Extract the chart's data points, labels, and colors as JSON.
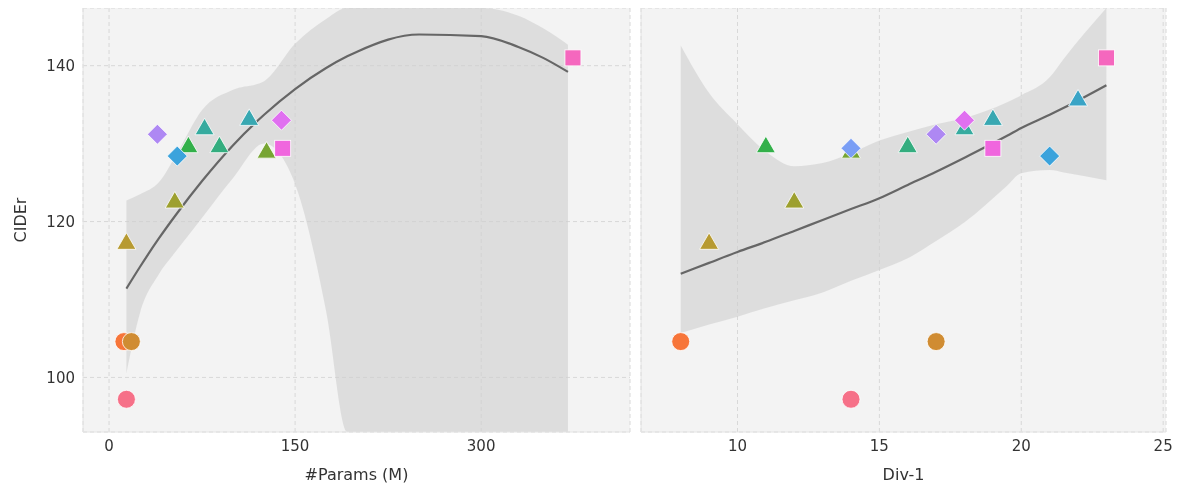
{
  "chart_data": [
    {
      "type": "scatter",
      "xlabel": "#Params (M)",
      "ylabel": "CIDEr",
      "xlim": [
        -21,
        420
      ],
      "xticks": [
        0,
        150,
        300
      ],
      "ylim": [
        93,
        147.4
      ],
      "yticks": [
        100,
        120,
        140
      ],
      "grid": true,
      "series": [
        {
          "type": "line",
          "color": "#666666",
          "x": [
            14,
            25,
            40,
            55,
            75,
            100,
            125,
            150,
            175,
            192,
            200,
            250,
            300,
            330,
            350,
            370
          ],
          "values": [
            111.4,
            114.2,
            117.8,
            121.1,
            125.2,
            129.8,
            133.7,
            137.0,
            139.7,
            141.2,
            141.8,
            144.0,
            143.8,
            142.4,
            141.0,
            139.2
          ],
          "lower": [
            100.5,
            108.3,
            113.2,
            116.4,
            120.5,
            125.6,
            130.0,
            124.8,
            108.5,
            93,
            93,
            93,
            93,
            93,
            93,
            93
          ],
          "upper": [
            122.7,
            123.5,
            125.0,
            128.8,
            134.3,
            136.9,
            138.0,
            142.8,
            146.0,
            147.4,
            147.4,
            147.4,
            147.4,
            146.4,
            144.8,
            142.7
          ]
        },
        {
          "color": "#f67088",
          "marker": "circle",
          "x": [
            14
          ],
          "values": [
            97.2
          ]
        },
        {
          "color": "#f77539",
          "marker": "circle",
          "x": [
            12
          ],
          "values": [
            104.6
          ]
        },
        {
          "color": "#d08c32",
          "marker": "circle",
          "x": [
            18
          ],
          "values": [
            104.6
          ]
        },
        {
          "color": "#b79a31",
          "marker": "triangle",
          "x": [
            14
          ],
          "values": [
            117.4
          ]
        },
        {
          "color": "#9da02f",
          "marker": "triangle",
          "x": [
            53
          ],
          "values": [
            122.7
          ]
        },
        {
          "color": "#77a532",
          "marker": "triangle",
          "x": [
            127
          ],
          "values": [
            129.1
          ]
        },
        {
          "color": "#33b04a",
          "marker": "triangle",
          "x": [
            64
          ],
          "values": [
            129.8
          ]
        },
        {
          "color": "#34ad7f",
          "marker": "triangle",
          "x": [
            89
          ],
          "values": [
            129.8
          ]
        },
        {
          "color": "#36ab9f",
          "marker": "triangle",
          "x": [
            77
          ],
          "values": [
            132.1
          ]
        },
        {
          "color": "#38a8b2",
          "marker": "triangle",
          "x": [
            113
          ],
          "values": [
            133.3
          ]
        },
        {
          "color": "#ae88f3",
          "marker": "diamond",
          "x": [
            39
          ],
          "values": [
            131.2
          ]
        },
        {
          "color": "#3ba3dc",
          "marker": "diamond",
          "x": [
            55
          ],
          "values": [
            128.4
          ]
        },
        {
          "color": "#e070f0",
          "marker": "diamond",
          "x": [
            139
          ],
          "values": [
            133.0
          ]
        },
        {
          "color": "#f066de",
          "marker": "square",
          "x": [
            140
          ],
          "values": [
            129.4
          ]
        },
        {
          "color": "#f567be",
          "marker": "square",
          "x": [
            374
          ],
          "values": [
            141.0
          ]
        }
      ]
    },
    {
      "type": "scatter",
      "xlabel": "Div-1",
      "xlim": [
        6.6,
        25.1
      ],
      "xticks": [
        10,
        15,
        20,
        25
      ],
      "ylim": [
        93,
        147.4
      ],
      "yticks": [
        100,
        120,
        140
      ],
      "grid": true,
      "tick_labels": "x",
      "series": [
        {
          "type": "line",
          "color": "#666666",
          "x": [
            8,
            9,
            10,
            11,
            12,
            13,
            14,
            15,
            16,
            17,
            18,
            19.5,
            20,
            21,
            21.5,
            23
          ],
          "values": [
            113.3,
            114.7,
            116.1,
            117.4,
            118.8,
            120.2,
            121.6,
            123.0,
            124.7,
            126.4,
            128.2,
            131.0,
            132.0,
            133.7,
            134.6,
            137.5
          ],
          "lower": [
            105.7,
            106.8,
            107.8,
            108.9,
            109.9,
            110.9,
            112.4,
            113.8,
            115.3,
            117.5,
            119.9,
            124.6,
            126.2,
            126.6,
            126.3,
            125.3
          ],
          "upper": [
            142.6,
            136.5,
            132.5,
            129.0,
            127.1,
            127.5,
            128.8,
            130.4,
            131.5,
            132.5,
            133.3,
            135.3,
            136.2,
            138.5,
            140.9,
            147.4
          ]
        },
        {
          "color": "#f67088",
          "marker": "circle",
          "x": [
            14
          ],
          "values": [
            97.2
          ]
        },
        {
          "color": "#f77539",
          "marker": "circle",
          "x": [
            8
          ],
          "values": [
            104.6
          ]
        },
        {
          "color": "#d08c32",
          "marker": "circle",
          "x": [
            17
          ],
          "values": [
            104.6
          ]
        },
        {
          "color": "#b79a31",
          "marker": "triangle",
          "x": [
            9
          ],
          "values": [
            117.4
          ]
        },
        {
          "color": "#9da02f",
          "marker": "triangle",
          "x": [
            12
          ],
          "values": [
            122.7
          ]
        },
        {
          "color": "#77a532",
          "marker": "triangle",
          "x": [
            14
          ],
          "values": [
            129.1
          ]
        },
        {
          "color": "#33b04a",
          "marker": "triangle",
          "x": [
            11
          ],
          "values": [
            129.8
          ]
        },
        {
          "color": "#34ad7f",
          "marker": "triangle",
          "x": [
            16
          ],
          "values": [
            129.8
          ]
        },
        {
          "color": "#36ab9f",
          "marker": "triangle",
          "x": [
            18
          ],
          "values": [
            132.1
          ]
        },
        {
          "color": "#38a8b2",
          "marker": "triangle",
          "x": [
            19
          ],
          "values": [
            133.3
          ]
        },
        {
          "color": "#3aa4c6",
          "marker": "triangle",
          "x": [
            22
          ],
          "values": [
            135.8
          ]
        },
        {
          "color": "#ae88f3",
          "marker": "diamond",
          "x": [
            17
          ],
          "values": [
            131.2
          ]
        },
        {
          "color": "#3ba3dc",
          "marker": "diamond",
          "x": [
            21
          ],
          "values": [
            128.4
          ]
        },
        {
          "color": "#7a9ef5",
          "marker": "diamond",
          "x": [
            14
          ],
          "values": [
            129.4
          ]
        },
        {
          "color": "#e070f0",
          "marker": "diamond",
          "x": [
            18
          ],
          "values": [
            133.0
          ]
        },
        {
          "color": "#f066de",
          "marker": "square",
          "x": [
            19
          ],
          "values": [
            129.4
          ]
        },
        {
          "color": "#f567be",
          "marker": "square",
          "x": [
            23
          ],
          "values": [
            141.0
          ]
        }
      ]
    }
  ]
}
